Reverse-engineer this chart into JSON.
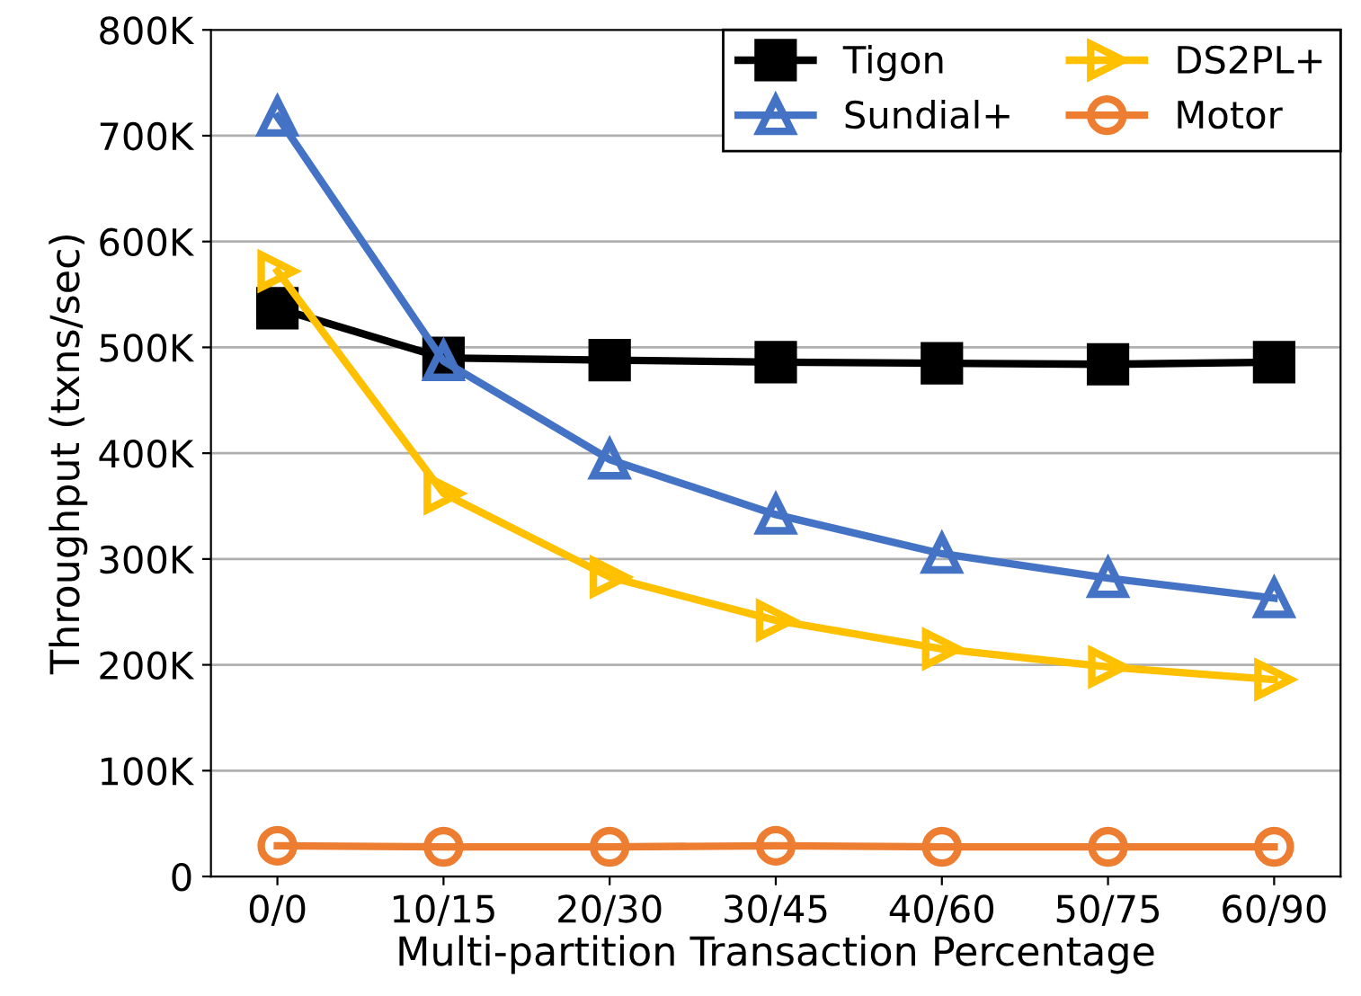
{
  "chart_data": {
    "type": "line",
    "xlabel": "Multi-partition Transaction Percentage",
    "ylabel": "Throughput (txns/sec)",
    "categories": [
      "0/0",
      "10/15",
      "20/30",
      "30/45",
      "40/60",
      "50/75",
      "60/90"
    ],
    "series": [
      {
        "name": "Tigon",
        "color": "#000000",
        "marker": "square",
        "values": [
          537000,
          490000,
          488000,
          486000,
          485000,
          484000,
          486000
        ]
      },
      {
        "name": "Sundial+",
        "color": "#4472c4",
        "marker": "triangle",
        "values": [
          718000,
          487000,
          394000,
          342000,
          305000,
          282000,
          263000
        ]
      },
      {
        "name": "DS2PL+",
        "color": "#ffc000",
        "marker": "triangle_right",
        "values": [
          572000,
          362000,
          283000,
          242000,
          215000,
          198000,
          186000
        ]
      },
      {
        "name": "Motor",
        "color": "#ed7d31",
        "marker": "circle",
        "values": [
          29000,
          28000,
          28000,
          29000,
          28000,
          28000,
          28000
        ]
      }
    ],
    "ylim": [
      0,
      800000
    ],
    "yticks": [
      {
        "value": 0,
        "label": "0"
      },
      {
        "value": 100000,
        "label": "100K"
      },
      {
        "value": 200000,
        "label": "200K"
      },
      {
        "value": 300000,
        "label": "300K"
      },
      {
        "value": 400000,
        "label": "400K"
      },
      {
        "value": 500000,
        "label": "500K"
      },
      {
        "value": 600000,
        "label": "600K"
      },
      {
        "value": 700000,
        "label": "700K"
      },
      {
        "value": 800000,
        "label": "800K"
      }
    ],
    "grid": "y",
    "legend": "top right",
    "line_style": "solid"
  }
}
